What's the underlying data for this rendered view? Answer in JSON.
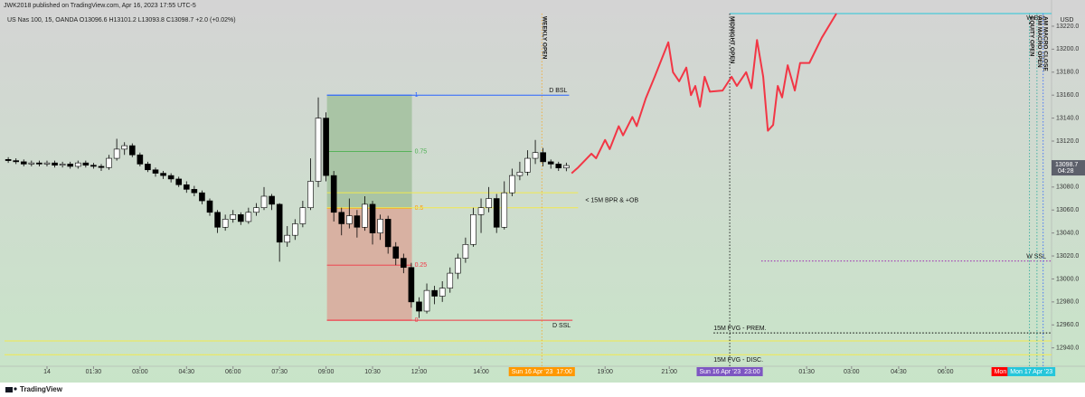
{
  "header": {
    "publisher": "JWK2018 published on TradingView.com, Apr 16, 2023 17:55 UTC-5",
    "symbol_line": "US Nas 100, 15, OANDA  O13096.6 H13101.2 L13093.8 C13098.7 +2.0 (+0.02%)"
  },
  "footer": "TradingView",
  "chart_data": {
    "type": "candlestick",
    "x": [
      -1.25,
      -1,
      -0.75,
      -0.5,
      -0.25,
      0,
      0.25,
      0.5,
      0.75,
      1,
      1.25,
      1.5,
      1.75,
      2,
      2.25,
      2.5,
      2.75,
      3,
      3.25,
      3.5,
      3.75,
      4,
      4.25,
      4.5,
      4.75,
      5,
      5.25,
      5.5,
      5.75,
      6,
      6.25,
      6.5,
      6.75,
      7,
      7.25,
      7.5,
      7.75,
      8,
      8.25,
      8.5,
      8.75,
      9,
      9.25,
      9.5,
      9.75,
      10,
      10.25,
      10.5,
      10.75,
      11,
      11.25,
      11.5,
      11.75,
      12,
      12.25,
      12.5,
      12.75,
      13,
      13.25,
      13.5,
      13.75,
      14,
      14.25,
      14.5,
      14.75,
      15,
      15.25,
      15.5,
      15.75,
      16,
      16.25,
      16.5,
      16.75
    ],
    "open": [
      13104,
      13103,
      13102,
      13100,
      13101,
      13100,
      13101,
      13099,
      13100,
      13098,
      13101,
      13099,
      13098,
      13097,
      13105,
      13113,
      13116,
      13108,
      13100,
      13095,
      13092,
      13090,
      13087,
      13082,
      13078,
      13075,
      13068,
      13058,
      13045,
      13052,
      13056,
      13050,
      13058,
      13062,
      13072,
      13065,
      13032,
      13038,
      13048,
      13062,
      13085,
      13140,
      13090,
      13058,
      13048,
      13055,
      13045,
      13065,
      13040,
      13052,
      13028,
      13018,
      13010,
      12980,
      12972,
      12990,
      12985,
      12992,
      13005,
      13018,
      13030,
      13056,
      13062,
      13070,
      13045,
      13075,
      13090,
      13093,
      13105,
      13110,
      13102,
      13100,
      13096.6
    ],
    "high": [
      13106,
      13105,
      13104,
      13103,
      13103,
      13103,
      13103,
      13102,
      13102,
      13103,
      13103,
      13101,
      13100,
      13108,
      13122,
      13119,
      13118,
      13110,
      13102,
      13097,
      13094,
      13092,
      13089,
      13085,
      13081,
      13077,
      13070,
      13060,
      13056,
      13060,
      13058,
      13062,
      13066,
      13080,
      13074,
      13066,
      13046,
      13052,
      13068,
      13105,
      13158,
      13145,
      13094,
      13062,
      13070,
      13060,
      13072,
      13068,
      13056,
      13055,
      13032,
      13022,
      13014,
      12984,
      12996,
      12994,
      12998,
      13010,
      13022,
      13036,
      13062,
      13070,
      13080,
      13074,
      13085,
      13096,
      13102,
      13112,
      13121,
      13114,
      13104,
      13102,
      13101.2
    ],
    "low": [
      13101,
      13100,
      13098,
      13098,
      13098,
      13098,
      13097,
      13097,
      13096,
      13096,
      13097,
      13096,
      13094,
      13095,
      13103,
      13108,
      13106,
      13098,
      13093,
      13089,
      13087,
      13084,
      13080,
      13075,
      13072,
      13065,
      13055,
      13040,
      13042,
      13049,
      13047,
      13048,
      13055,
      13060,
      13060,
      13015,
      13028,
      13034,
      13045,
      13060,
      13080,
      13085,
      13050,
      13038,
      13044,
      13036,
      13042,
      13030,
      13034,
      13022,
      13012,
      13005,
      12975,
      12966,
      12970,
      12978,
      12980,
      12988,
      13000,
      13014,
      13028,
      13040,
      13058,
      13040,
      13043,
      13072,
      13086,
      13090,
      13100,
      13098,
      13096,
      13094,
      13093.8
    ],
    "close": [
      13103,
      13102,
      13100,
      13101,
      13100,
      13101,
      13099,
      13100,
      13098,
      13101,
      13099,
      13098,
      13097,
      13105,
      13113,
      13116,
      13108,
      13100,
      13095,
      13092,
      13090,
      13087,
      13082,
      13078,
      13075,
      13068,
      13058,
      13045,
      13052,
      13056,
      13050,
      13058,
      13062,
      13072,
      13065,
      13032,
      13038,
      13048,
      13062,
      13085,
      13140,
      13090,
      13058,
      13048,
      13055,
      13045,
      13065,
      13040,
      13052,
      13028,
      13018,
      13010,
      12980,
      12972,
      12990,
      12985,
      12992,
      13005,
      13018,
      13030,
      13056,
      13062,
      13070,
      13045,
      13075,
      13090,
      13093,
      13105,
      13110,
      13102,
      13100,
      13096.6,
      13098.7
    ],
    "up_color": "#ffffff",
    "down_color": "#000000",
    "xlim": [
      -1.37,
      32.4
    ],
    "ylim": [
      12924,
      13231
    ],
    "xticks": [
      {
        "value": 0,
        "label": "14"
      },
      {
        "value": 1.5,
        "label": "01:30"
      },
      {
        "value": 3,
        "label": "03:00"
      },
      {
        "value": 4.5,
        "label": "04:30"
      },
      {
        "value": 6,
        "label": "06:00"
      },
      {
        "value": 7.5,
        "label": "07:30"
      },
      {
        "value": 9,
        "label": "09:00"
      },
      {
        "value": 10.5,
        "label": "10:30"
      },
      {
        "value": 12,
        "label": "12:00"
      },
      {
        "value": 14,
        "label": "14:00"
      },
      {
        "value": 18,
        "label": "19:00"
      },
      {
        "value": 20.07,
        "label": "21:00"
      },
      {
        "value": 24.5,
        "label": "01:30"
      },
      {
        "value": 25.95,
        "label": "03:00"
      },
      {
        "value": 27.47,
        "label": "04:30"
      },
      {
        "value": 28.98,
        "label": "06:00"
      }
    ],
    "yticks": [
      {
        "value": 12940,
        "label": "12940.0"
      },
      {
        "value": 12960,
        "label": "12960.0"
      },
      {
        "value": 12980,
        "label": "12980.0"
      },
      {
        "value": 13000,
        "label": "13000.0"
      },
      {
        "value": 13020,
        "label": "13020.0"
      },
      {
        "value": 13040,
        "label": "13040.0"
      },
      {
        "value": 13060,
        "label": "13060.0"
      },
      {
        "value": 13080,
        "label": "13080.0"
      },
      {
        "value": 13120,
        "label": "13120.0"
      },
      {
        "value": 13140,
        "label": "13140.0"
      },
      {
        "value": 13160,
        "label": "13160.0"
      },
      {
        "value": 13180,
        "label": "13180.0"
      },
      {
        "value": 13200,
        "label": "13200.0"
      },
      {
        "value": 13220,
        "label": "13220.0"
      }
    ],
    "grid": false,
    "y_unit": "USD",
    "countdown": "04:28",
    "projection": {
      "color": "#f23645",
      "x": [
        16.92,
        17.13,
        17.56,
        17.71,
        18.0,
        18.15,
        18.44,
        18.58,
        18.88,
        19.02,
        19.31,
        19.6,
        20.04,
        20.19,
        20.39,
        20.62,
        20.77,
        20.91,
        21.06,
        21.21,
        21.38,
        21.79,
        22.08,
        22.25,
        22.55,
        22.72,
        22.9,
        23.1,
        23.25,
        23.42,
        23.57,
        23.71,
        23.89,
        24.12,
        24.29,
        24.59,
        24.99,
        25.46
      ],
      "values": [
        13092,
        13097,
        13109,
        13105,
        13121,
        13113,
        13133,
        13125,
        13141,
        13133,
        13157,
        13176,
        13206,
        13180,
        13172,
        13184,
        13160,
        13168,
        13150,
        13176,
        13163,
        13164,
        13176,
        13168,
        13180,
        13166,
        13208,
        13176,
        13129,
        13134,
        13168,
        13158,
        13186,
        13164,
        13188,
        13188,
        13210,
        13231
      ]
    },
    "fib": {
      "x": [
        9.03,
        11.77
      ],
      "upper_color": "#a9c4a5",
      "lower_color": "#d8b1a2",
      "levels": [
        {
          "ratio": 1,
          "price": 13160,
          "color": "#2962ff"
        },
        {
          "ratio": 0.75,
          "price": 13111,
          "color": "#4caf50"
        },
        {
          "ratio": 0.5,
          "price": 13061.5,
          "color": "#ff9800"
        },
        {
          "ratio": 0.25,
          "price": 13012,
          "color": "#f23645"
        },
        {
          "ratio": 0,
          "price": 12964,
          "color": "#f23645"
        }
      ]
    },
    "levels": [
      {
        "label": "D BSL",
        "value": 13160,
        "x": [
          9.03,
          16.84
        ],
        "color": "#2962ff",
        "style": "solid"
      },
      {
        "label": "D SSL",
        "value": 12964,
        "x": [
          9.03,
          16.95
        ],
        "color": "#f23645",
        "style": "solid"
      },
      {
        "label": "W SSL",
        "value": 13015.6,
        "x": [
          23.04,
          32.4
        ],
        "color": "#9c27b0",
        "style": "dotted"
      },
      {
        "label": "15M FVG - PREM.",
        "value": 12953,
        "x": [
          21.5,
          32.4
        ],
        "color": "#000000",
        "style": "dotted"
      },
      {
        "label": "W BSL",
        "value": 13231,
        "x": [
          22.02,
          32.4
        ],
        "color": "#26c6da",
        "style": "solid"
      }
    ],
    "bpr": {
      "label": "< 15M BPR & +OB",
      "values": [
        13075,
        13062
      ],
      "x": [
        9.03,
        17.13
      ],
      "color": "#f2e94e"
    },
    "fvg_disc": {
      "label": "15M FVG - DISC.",
      "values": [
        12946,
        12934
      ],
      "x": [
        -1.37,
        32.4
      ],
      "color": "#f2e94e"
    },
    "vlines": [
      {
        "label": "WEEKLY OPEN",
        "x": 15.96,
        "color": "#f5a623"
      },
      {
        "label": "MIDNIGHT OPEN",
        "x": 22.02,
        "color": "#000000"
      },
      {
        "label": "EQUITY OPEN",
        "x": 31.69,
        "color": "#26a69a"
      },
      {
        "label": "AM MACRO OPEN",
        "x": 31.93,
        "color": "#26a69a"
      },
      {
        "label": "AM MACRO CLOSE",
        "x": 32.13,
        "color": "#2962ff"
      }
    ],
    "time_markers": [
      {
        "label": "Sun 16 Apr '23  17:00",
        "x": 15.96,
        "color": "#ff9800"
      },
      {
        "label": "Sun 16 Apr '23  23:00",
        "x": 22.02,
        "color": "#7e57c2"
      },
      {
        "label": "Mon",
        "x": 30.75,
        "color": "#ff0000"
      },
      {
        "label": "Mon 17 Apr '23",
        "x": 31.75,
        "color": "#26c6da"
      }
    ]
  }
}
